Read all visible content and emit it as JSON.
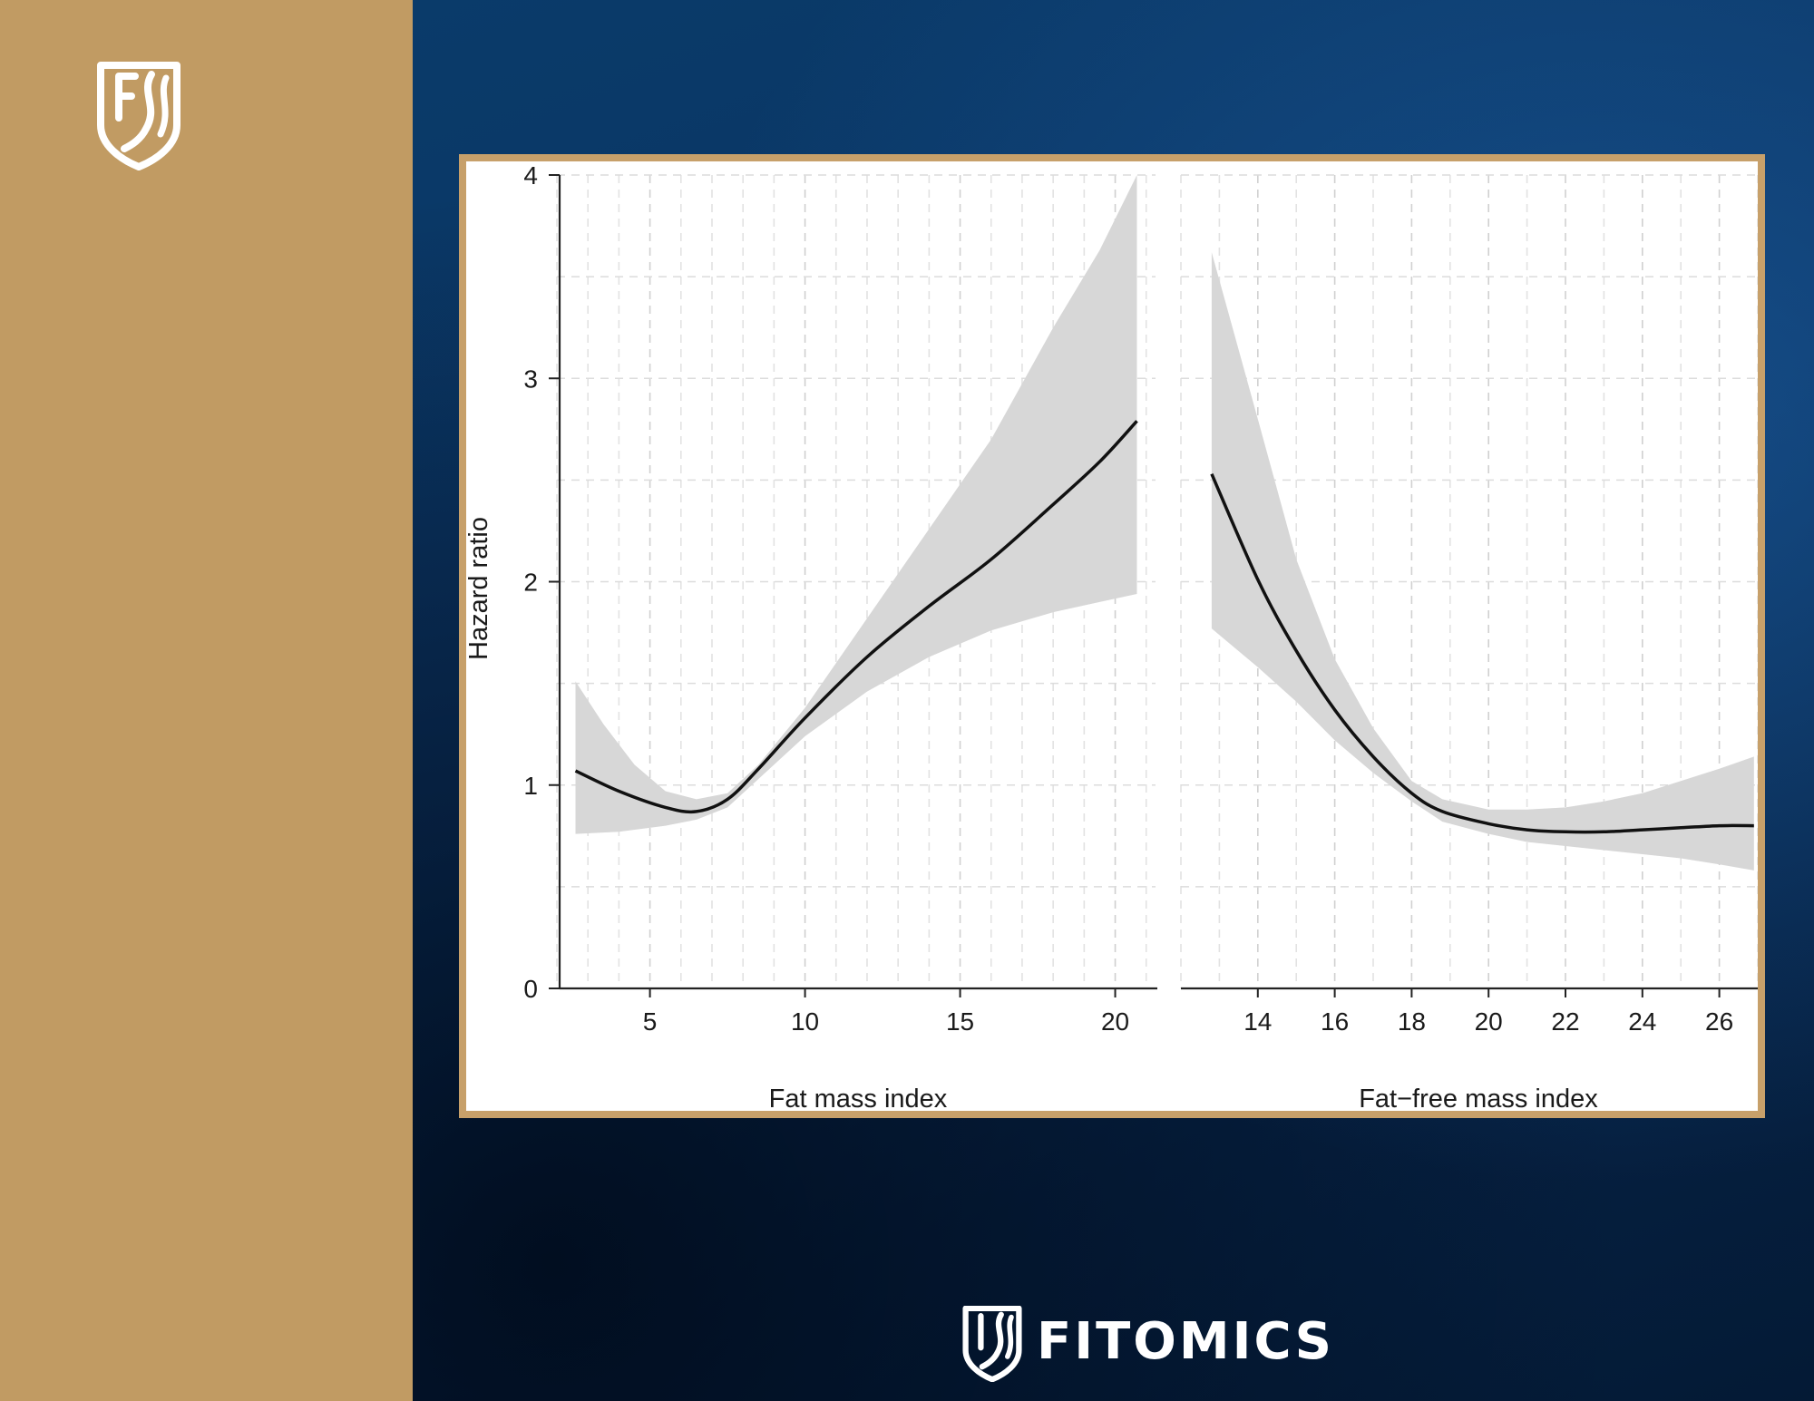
{
  "branding": {
    "name": "FITOMICS",
    "colors": {
      "gold": "#c19b63",
      "navy": "#0b3260",
      "white": "#ffffff"
    },
    "logo_icon": "shield-fj-icon"
  },
  "chart_data": [
    {
      "type": "line",
      "panel": "left",
      "xlabel": "Fat mass index",
      "ylabel": "Hazard ratio",
      "xlim": [
        2.0,
        21.3
      ],
      "ylim": [
        0,
        4
      ],
      "xticks": [
        5,
        10,
        15,
        20
      ],
      "yticks": [
        0,
        1,
        2,
        3,
        4
      ],
      "grid": true,
      "series": [
        {
          "role": "estimate",
          "x": [
            2.6,
            4.0,
            5.5,
            6.5,
            7.5,
            8.5,
            10,
            12,
            14,
            16,
            18,
            19.5,
            20.7
          ],
          "y": [
            1.07,
            0.97,
            0.89,
            0.87,
            0.93,
            1.08,
            1.33,
            1.63,
            1.88,
            2.11,
            2.38,
            2.59,
            2.79
          ]
        },
        {
          "role": "ci_upper",
          "x": [
            2.6,
            3.5,
            4.5,
            5.5,
            6.5,
            7.5,
            8.5,
            10,
            12,
            14,
            16,
            18,
            19.5,
            20.7
          ],
          "y": [
            1.51,
            1.3,
            1.1,
            0.97,
            0.93,
            0.96,
            1.1,
            1.38,
            1.82,
            2.26,
            2.7,
            3.25,
            3.63,
            4.0
          ]
        },
        {
          "role": "ci_lower",
          "x": [
            2.6,
            4.0,
            5.5,
            6.5,
            7.5,
            8.5,
            10,
            12,
            14,
            16,
            18,
            19.5,
            20.7
          ],
          "y": [
            0.76,
            0.77,
            0.8,
            0.83,
            0.89,
            1.03,
            1.24,
            1.46,
            1.63,
            1.76,
            1.85,
            1.9,
            1.94
          ]
        }
      ]
    },
    {
      "type": "line",
      "panel": "right",
      "xlabel": "Fat−free mass index",
      "ylabel": "",
      "xlim": [
        12.0,
        27.0
      ],
      "ylim": [
        0,
        4
      ],
      "xticks": [
        14,
        16,
        18,
        20,
        22,
        24,
        26
      ],
      "yticks": [
        0,
        1,
        2,
        3,
        4
      ],
      "grid": true,
      "series": [
        {
          "role": "estimate",
          "x": [
            12.8,
            14,
            15,
            16,
            17,
            18,
            18.8,
            20,
            21,
            22,
            23,
            24,
            25,
            26,
            26.9
          ],
          "y": [
            2.53,
            2.01,
            1.66,
            1.37,
            1.14,
            0.96,
            0.87,
            0.81,
            0.78,
            0.77,
            0.77,
            0.78,
            0.79,
            0.8,
            0.8
          ]
        },
        {
          "role": "ci_upper",
          "x": [
            12.8,
            14,
            15,
            16,
            17,
            18,
            18.8,
            20,
            21,
            22,
            23,
            24,
            25,
            26,
            26.9
          ],
          "y": [
            3.62,
            2.8,
            2.11,
            1.62,
            1.28,
            1.02,
            0.93,
            0.88,
            0.88,
            0.89,
            0.92,
            0.96,
            1.02,
            1.08,
            1.14
          ]
        },
        {
          "role": "ci_lower",
          "x": [
            12.8,
            14,
            15,
            16,
            17,
            18,
            18.8,
            20,
            21,
            22,
            23,
            24,
            25,
            26,
            26.9
          ],
          "y": [
            1.77,
            1.58,
            1.41,
            1.22,
            1.06,
            0.92,
            0.82,
            0.76,
            0.72,
            0.7,
            0.68,
            0.66,
            0.64,
            0.61,
            0.58
          ]
        }
      ]
    }
  ]
}
